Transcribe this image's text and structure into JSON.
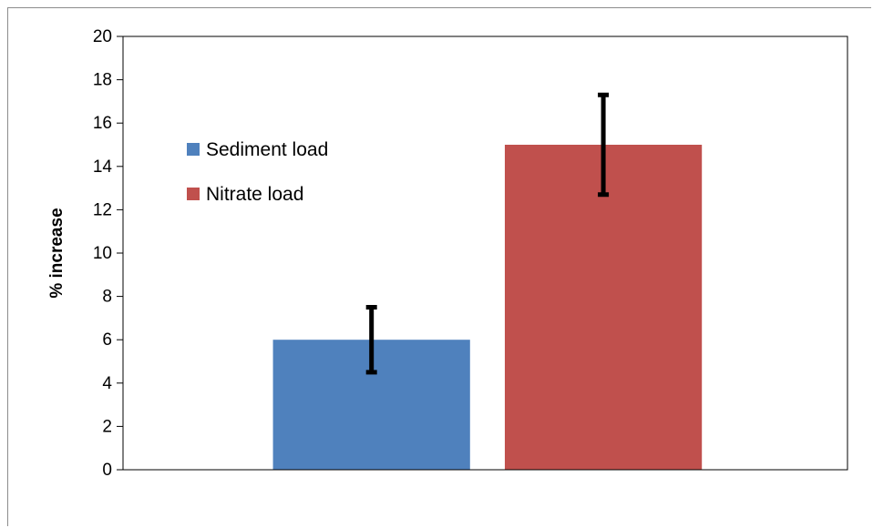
{
  "chart_data": {
    "type": "bar",
    "title": "",
    "xlabel": "",
    "ylabel": "% increase",
    "ylim": [
      0,
      20
    ],
    "yticks": [
      0,
      2,
      4,
      6,
      8,
      10,
      12,
      14,
      16,
      18,
      20
    ],
    "grid": false,
    "legend_position": "upper-left",
    "series": [
      {
        "name": "Sediment load",
        "value": 6,
        "error_low": 4.5,
        "error_high": 7.5,
        "color": "#4f81bd"
      },
      {
        "name": "Nitrate load",
        "value": 15,
        "error_low": 12.7,
        "error_high": 17.3,
        "color": "#c0504d"
      }
    ]
  }
}
